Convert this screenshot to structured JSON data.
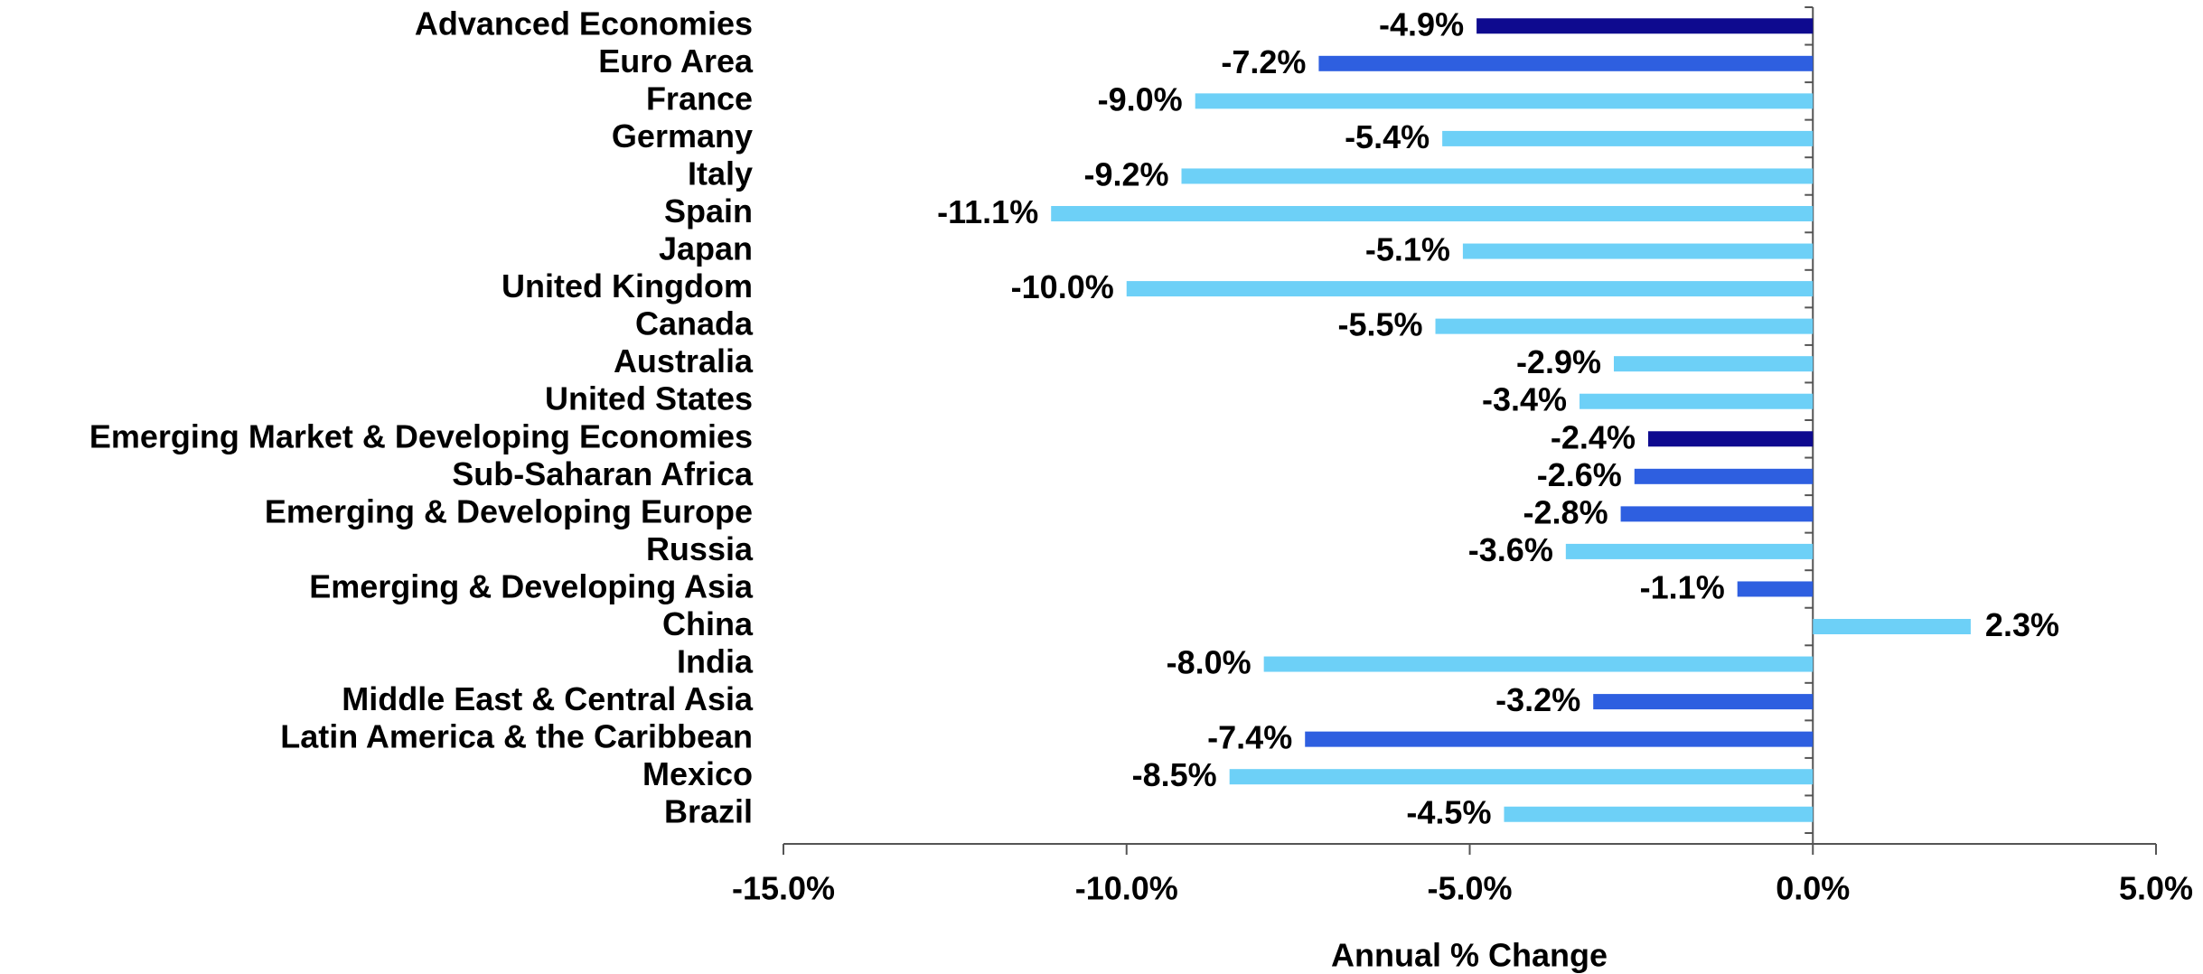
{
  "chart_data": {
    "type": "bar",
    "orientation": "horizontal",
    "categories": [
      "Advanced Economies",
      "Euro Area",
      "France",
      "Germany",
      "Italy",
      "Spain",
      "Japan",
      "United Kingdom",
      "Canada",
      "Australia",
      "United States",
      "Emerging Market & Developing Economies",
      "Sub-Saharan Africa",
      "Emerging & Developing Europe",
      "Russia",
      "Emerging & Developing Asia",
      "China",
      "India",
      "Middle East & Central Asia",
      "Latin America & the Caribbean",
      "Mexico",
      "Brazil"
    ],
    "values": [
      -4.9,
      -7.2,
      -9.0,
      -5.4,
      -9.2,
      -11.1,
      -5.1,
      -10.0,
      -5.5,
      -2.9,
      -3.4,
      -2.4,
      -2.6,
      -2.8,
      -3.6,
      -1.1,
      2.3,
      -8.0,
      -3.2,
      -7.4,
      -8.5,
      -4.5
    ],
    "value_labels": [
      "-4.9%",
      "-7.2%",
      "-9.0%",
      "-5.4%",
      "-9.2%",
      "-11.1%",
      "-5.1%",
      "-10.0%",
      "-5.5%",
      "-2.9%",
      "-3.4%",
      "-2.4%",
      "-2.6%",
      "-2.8%",
      "-3.6%",
      "-1.1%",
      "2.3%",
      "-8.0%",
      "-3.2%",
      "-7.4%",
      "-8.5%",
      "-4.5%"
    ],
    "colors": [
      "#0e0a8f",
      "#2e5fe0",
      "#6dd0f7",
      "#6dd0f7",
      "#6dd0f7",
      "#6dd0f7",
      "#6dd0f7",
      "#6dd0f7",
      "#6dd0f7",
      "#6dd0f7",
      "#6dd0f7",
      "#0e0a8f",
      "#2e5fe0",
      "#2e5fe0",
      "#6dd0f7",
      "#2e5fe0",
      "#6dd0f7",
      "#6dd0f7",
      "#2e5fe0",
      "#2e5fe0",
      "#6dd0f7",
      "#6dd0f7"
    ],
    "x_label": "Annual % Change",
    "xlim": [
      -15,
      5
    ],
    "xticks": [
      {
        "value": -15,
        "label": "-15.0%"
      },
      {
        "value": -10,
        "label": "-10.0%"
      },
      {
        "value": -5,
        "label": "-5.0%"
      },
      {
        "value": 0,
        "label": "0.0%"
      },
      {
        "value": 5,
        "label": "5.0%"
      }
    ],
    "grid": false
  }
}
